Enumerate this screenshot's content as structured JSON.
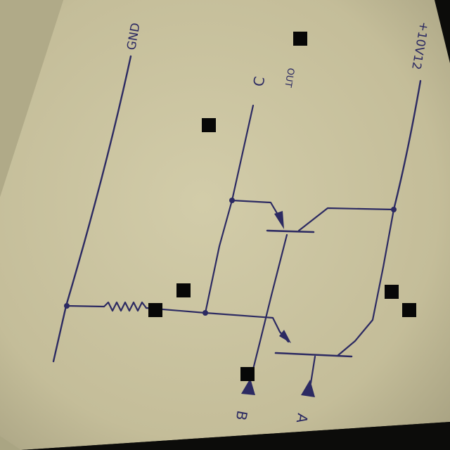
{
  "labels": {
    "gnd": "GND",
    "c": "C",
    "c_note": "OUT",
    "vcc": "+10V12",
    "b": "B",
    "a": "A"
  },
  "colors": {
    "paper": "#cdc6a3",
    "paper_back": "#b7b18c",
    "ink": "#2c2a62",
    "background": "#0c0c0a",
    "marker": "#070707"
  }
}
